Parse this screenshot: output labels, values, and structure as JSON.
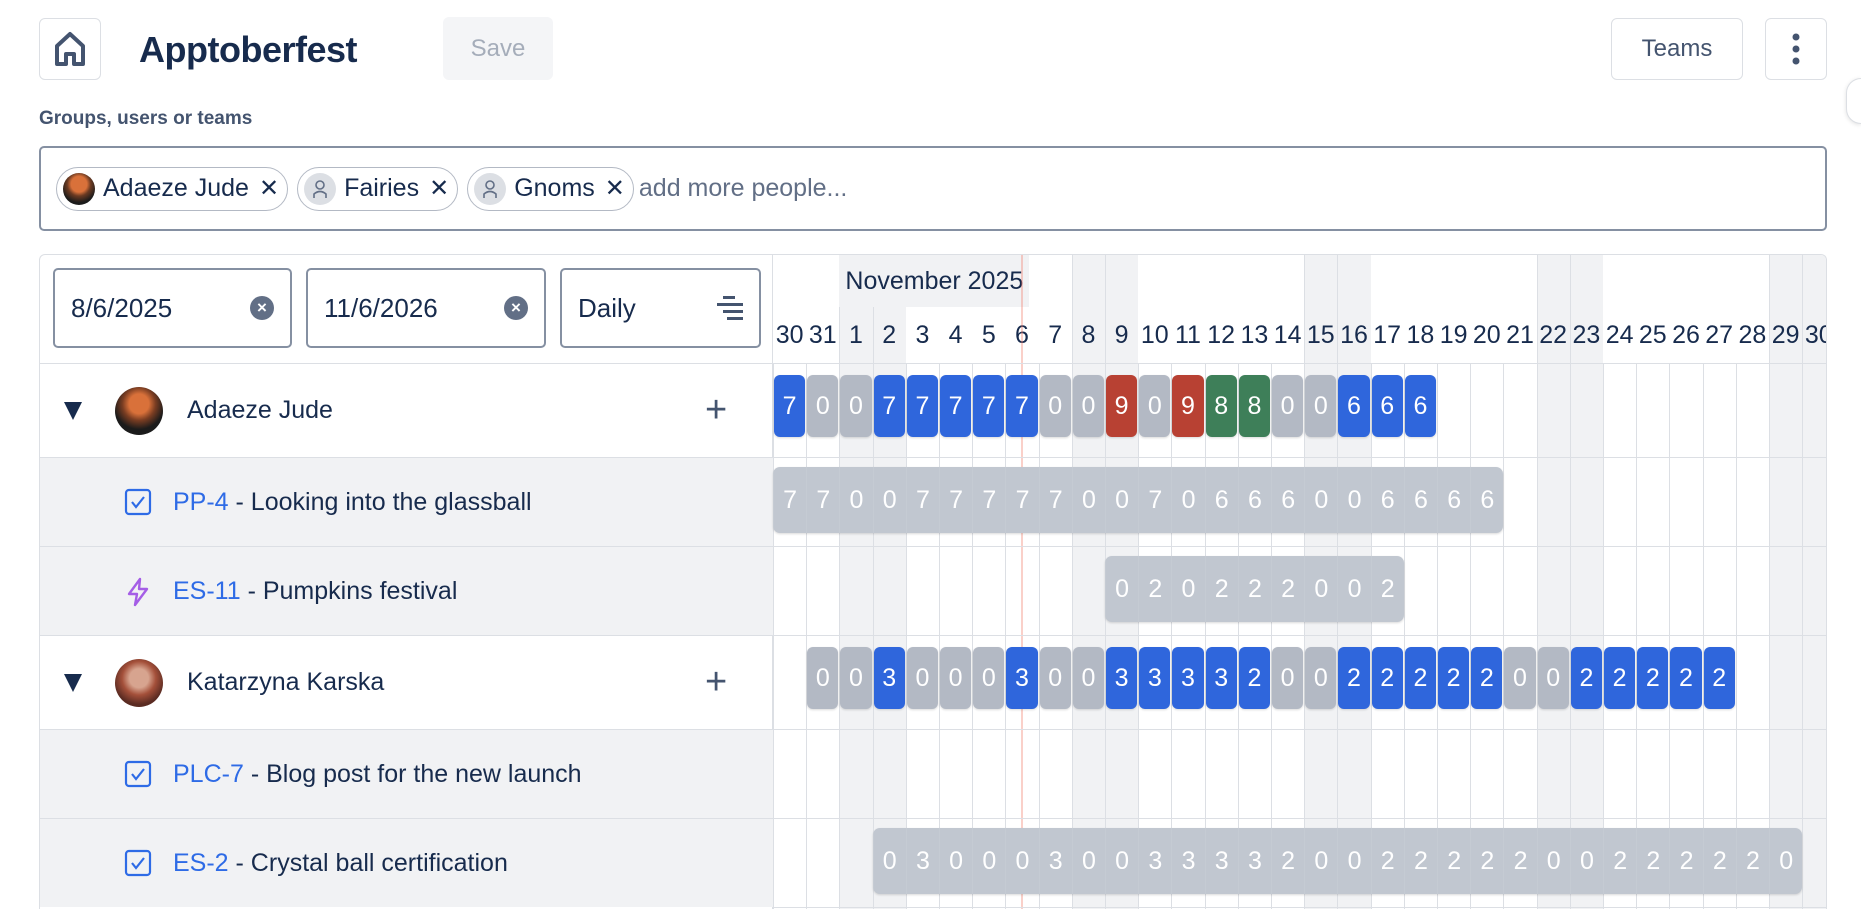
{
  "header": {
    "title": "Apptoberfest",
    "save_label": "Save",
    "teams_label": "Teams"
  },
  "people_picker": {
    "label": "Groups, users or teams",
    "placeholder": "add more people...",
    "chips": [
      {
        "label": "Adaeze Jude",
        "kind": "user-photo"
      },
      {
        "label": "Fairies",
        "kind": "team"
      },
      {
        "label": "Gnoms",
        "kind": "team"
      }
    ]
  },
  "filters": {
    "start_date": "8/6/2025",
    "end_date": "11/6/2026",
    "granularity": "Daily"
  },
  "timeline": {
    "month_label": "November 2025",
    "today": "6",
    "days": [
      {
        "label": "30",
        "weekend": false
      },
      {
        "label": "31",
        "weekend": false
      },
      {
        "label": "1",
        "weekend": true
      },
      {
        "label": "2",
        "weekend": true
      },
      {
        "label": "3",
        "weekend": false
      },
      {
        "label": "4",
        "weekend": false
      },
      {
        "label": "5",
        "weekend": false
      },
      {
        "label": "6",
        "weekend": false
      },
      {
        "label": "7",
        "weekend": false
      },
      {
        "label": "8",
        "weekend": true
      },
      {
        "label": "9",
        "weekend": true
      },
      {
        "label": "10",
        "weekend": false
      },
      {
        "label": "11",
        "weekend": false
      },
      {
        "label": "12",
        "weekend": false
      },
      {
        "label": "13",
        "weekend": false
      },
      {
        "label": "14",
        "weekend": false
      },
      {
        "label": "15",
        "weekend": true
      },
      {
        "label": "16",
        "weekend": true
      },
      {
        "label": "17",
        "weekend": false
      },
      {
        "label": "18",
        "weekend": false
      },
      {
        "label": "19",
        "weekend": false
      },
      {
        "label": "20",
        "weekend": false
      },
      {
        "label": "21",
        "weekend": false
      },
      {
        "label": "22",
        "weekend": true
      },
      {
        "label": "23",
        "weekend": true
      },
      {
        "label": "24",
        "weekend": false
      },
      {
        "label": "25",
        "weekend": false
      },
      {
        "label": "26",
        "weekend": false
      },
      {
        "label": "27",
        "weekend": false
      },
      {
        "label": "28",
        "weekend": false
      },
      {
        "label": "29",
        "weekend": true
      },
      {
        "label": "30",
        "weekend": true
      }
    ]
  },
  "colors": {
    "booked": "#2f66dc",
    "free": "#b3b9c4",
    "over": "#b84133",
    "high": "#3e7f59",
    "task": "#c1c7d0",
    "key": "#2e6be6",
    "epic": "#a55ee6"
  },
  "rows": [
    {
      "type": "person",
      "name": "Adaeze Jude",
      "avatar": "adaeze",
      "values": [
        7,
        0,
        0,
        7,
        7,
        7,
        7,
        7,
        0,
        0,
        9,
        0,
        9,
        8,
        8,
        0,
        0,
        6,
        6,
        6,
        null,
        null,
        null,
        null,
        null,
        null,
        null,
        null,
        null,
        null,
        null,
        null
      ],
      "status": [
        "booked",
        "free",
        "free",
        "booked",
        "booked",
        "booked",
        "booked",
        "booked",
        "free",
        "free",
        "over",
        "free",
        "over",
        "high",
        "high",
        "free",
        "free",
        "booked",
        "booked",
        "booked"
      ]
    },
    {
      "type": "task",
      "icon": "task",
      "key": "PP-4",
      "summary": " - Looking into the glassball",
      "values": [
        7,
        7,
        0,
        0,
        7,
        7,
        7,
        7,
        7,
        0,
        0,
        7,
        0,
        6,
        6,
        6,
        0,
        0,
        6,
        6,
        6,
        6,
        null,
        null,
        null,
        null,
        null,
        null,
        null,
        null,
        null,
        null
      ]
    },
    {
      "type": "task",
      "icon": "epic",
      "key": "ES-11",
      "summary": " - Pumpkins festival",
      "values": [
        null,
        null,
        null,
        null,
        null,
        null,
        null,
        null,
        null,
        null,
        0,
        2,
        0,
        2,
        2,
        2,
        0,
        0,
        2,
        null,
        null,
        null,
        null,
        null,
        null,
        null,
        null,
        null,
        null,
        null,
        null,
        null
      ]
    },
    {
      "type": "person",
      "name": "Katarzyna Karska",
      "avatar": "katarzyna",
      "values": [
        null,
        0,
        0,
        3,
        0,
        0,
        0,
        3,
        0,
        0,
        3,
        3,
        3,
        3,
        2,
        0,
        0,
        2,
        2,
        2,
        2,
        2,
        0,
        0,
        2,
        2,
        2,
        2,
        2,
        null,
        null,
        null
      ],
      "status": [
        null,
        "free",
        "free",
        "booked",
        "free",
        "free",
        "free",
        "booked",
        "free",
        "free",
        "booked",
        "booked",
        "booked",
        "booked",
        "booked",
        "free",
        "free",
        "booked",
        "booked",
        "booked",
        "booked",
        "booked",
        "free",
        "free",
        "booked",
        "booked",
        "booked",
        "booked",
        "booked"
      ]
    },
    {
      "type": "task",
      "icon": "task",
      "key": "PLC-7",
      "summary": " - Blog post for the new launch",
      "values": [
        null,
        null,
        null,
        null,
        null,
        null,
        null,
        null,
        null,
        null,
        null,
        null,
        null,
        null,
        null,
        null,
        null,
        null,
        null,
        null,
        null,
        null,
        null,
        null,
        null,
        null,
        null,
        null,
        null,
        null,
        null,
        null
      ]
    },
    {
      "type": "task",
      "icon": "task",
      "key": "ES-2",
      "summary": " - Crystal ball certification",
      "values": [
        null,
        null,
        null,
        0,
        3,
        0,
        0,
        0,
        3,
        0,
        0,
        3,
        3,
        3,
        3,
        2,
        0,
        0,
        2,
        2,
        2,
        2,
        2,
        0,
        0,
        2,
        2,
        2,
        2,
        2,
        0,
        null
      ]
    }
  ]
}
